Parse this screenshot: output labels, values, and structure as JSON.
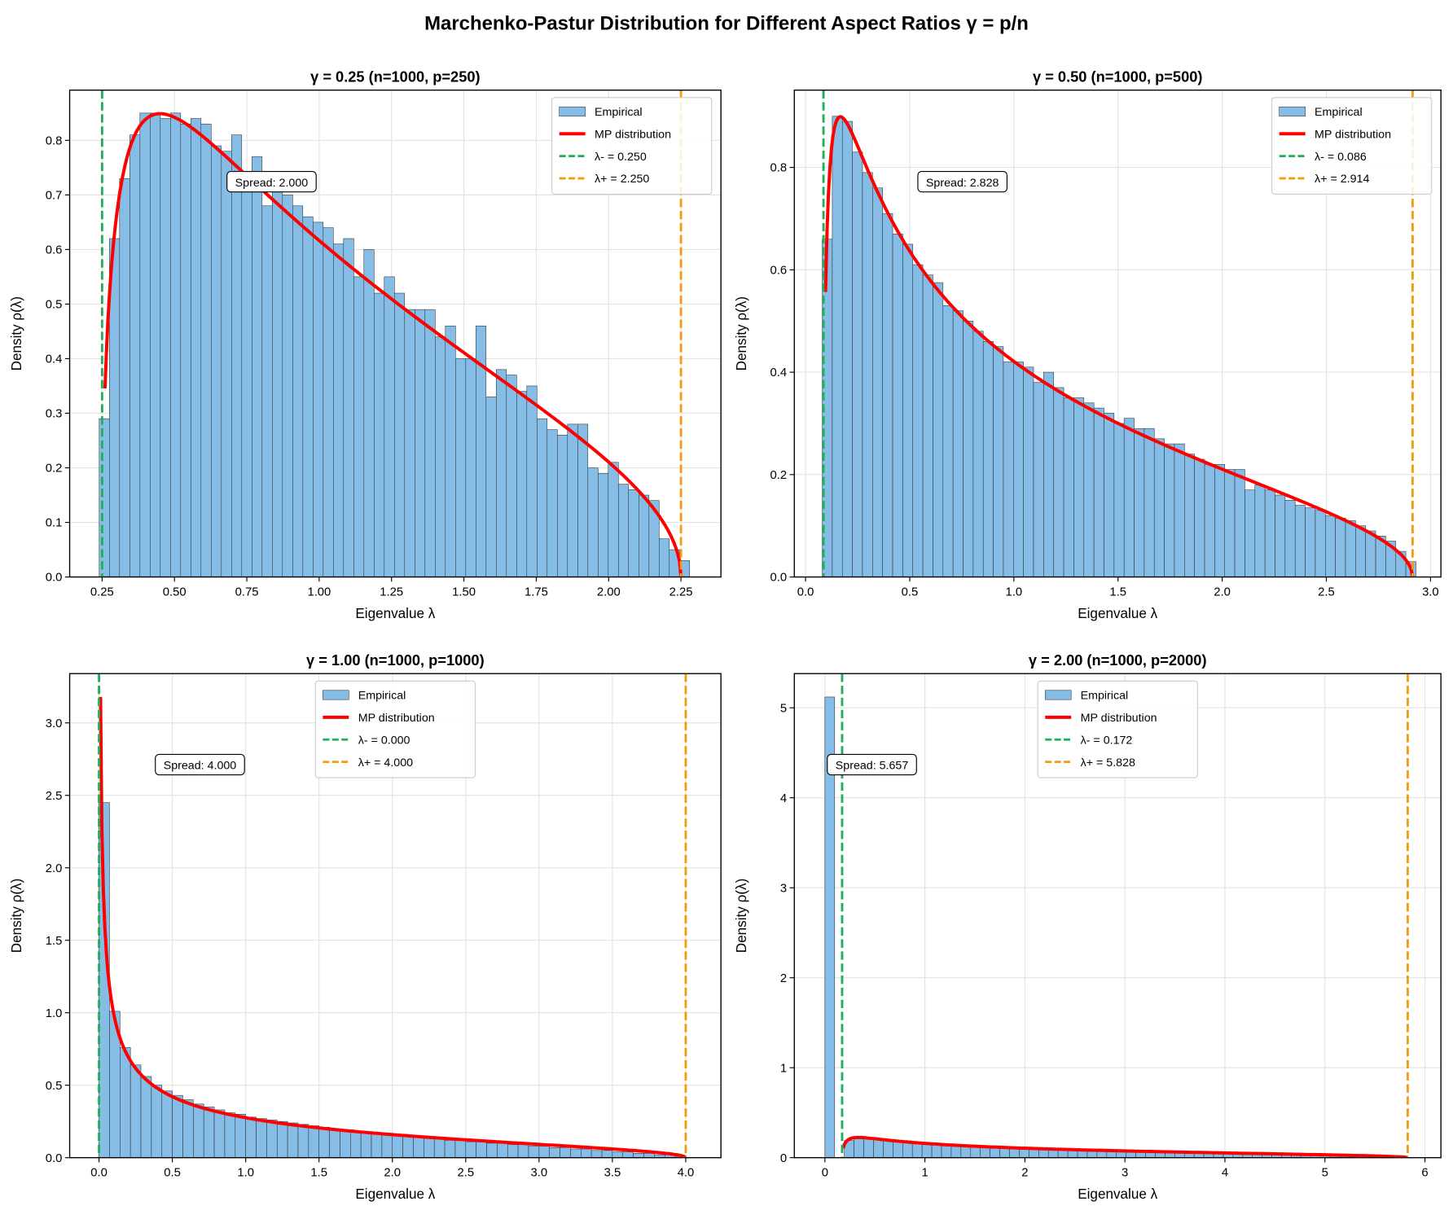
{
  "title": "Marchenko-Pastur Distribution for Different Aspect Ratios γ = p/n",
  "colors": {
    "hist": "#85bde6",
    "hist_edge": "#333333",
    "mp": "#ff0000",
    "lminus": "#1fae5a",
    "lplus": "#f39c12"
  },
  "chart_data": [
    {
      "type": "bar",
      "title": "γ = 0.25 (n=1000, p=250)",
      "xlabel": "Eigenvalue λ",
      "ylabel": "Density ρ(λ)",
      "gamma": 0.25,
      "lambda_minus": 0.25,
      "lambda_plus": 2.25,
      "xlim": [
        0.138,
        2.388
      ],
      "ylim": [
        0,
        0.892
      ],
      "xticks": [
        "0.25",
        "0.50",
        "0.75",
        "1.00",
        "1.25",
        "1.50",
        "1.75",
        "2.00",
        "2.25"
      ],
      "xtick_values": [
        0.25,
        0.5,
        0.75,
        1.0,
        1.25,
        1.5,
        1.75,
        2.0,
        2.25
      ],
      "yticks": [
        "0.0",
        "0.1",
        "0.2",
        "0.3",
        "0.4",
        "0.5",
        "0.6",
        "0.7",
        "0.8"
      ],
      "ytick_values": [
        0,
        0.1,
        0.2,
        0.3,
        0.4,
        0.5,
        0.6,
        0.7,
        0.8
      ],
      "hist_range": [
        0.24,
        2.28
      ],
      "hist_values": [
        0.29,
        0.62,
        0.73,
        0.81,
        0.85,
        0.85,
        0.84,
        0.85,
        0.83,
        0.84,
        0.83,
        0.79,
        0.78,
        0.81,
        0.73,
        0.77,
        0.68,
        0.71,
        0.7,
        0.68,
        0.66,
        0.65,
        0.64,
        0.61,
        0.62,
        0.55,
        0.6,
        0.52,
        0.55,
        0.52,
        0.49,
        0.49,
        0.49,
        0.44,
        0.46,
        0.4,
        0.4,
        0.46,
        0.33,
        0.38,
        0.37,
        0.34,
        0.35,
        0.29,
        0.27,
        0.26,
        0.28,
        0.28,
        0.2,
        0.19,
        0.21,
        0.17,
        0.16,
        0.15,
        0.14,
        0.07,
        0.05,
        0.03
      ],
      "legend": [
        "Empirical",
        "MP distribution",
        "λ- = 0.250",
        "λ+ = 2.250"
      ],
      "legend_loc": "upper right",
      "annotation": "Spread: 2.000"
    },
    {
      "type": "bar",
      "title": "γ = 0.50 (n=1000, p=500)",
      "xlabel": "Eigenvalue λ",
      "ylabel": "Density ρ(λ)",
      "gamma": 0.5,
      "lambda_minus": 0.086,
      "lambda_plus": 2.914,
      "xlim": [
        -0.054,
        3.05
      ],
      "ylim": [
        0,
        0.951
      ],
      "xticks": [
        "0.0",
        "0.5",
        "1.0",
        "1.5",
        "2.0",
        "2.5",
        "3.0"
      ],
      "xtick_values": [
        0,
        0.5,
        1,
        1.5,
        2,
        2.5,
        3
      ],
      "yticks": [
        "0.0",
        "0.2",
        "0.4",
        "0.6",
        "0.8"
      ],
      "ytick_values": [
        0,
        0.2,
        0.4,
        0.6,
        0.8
      ],
      "hist_range": [
        0.08,
        2.93
      ],
      "hist_values": [
        0.66,
        0.9,
        0.89,
        0.83,
        0.79,
        0.76,
        0.71,
        0.67,
        0.65,
        0.61,
        0.59,
        0.575,
        0.53,
        0.52,
        0.5,
        0.48,
        0.46,
        0.45,
        0.42,
        0.42,
        0.41,
        0.38,
        0.4,
        0.37,
        0.35,
        0.35,
        0.34,
        0.33,
        0.32,
        0.3,
        0.31,
        0.29,
        0.29,
        0.27,
        0.26,
        0.26,
        0.24,
        0.23,
        0.22,
        0.22,
        0.21,
        0.21,
        0.17,
        0.18,
        0.17,
        0.16,
        0.15,
        0.14,
        0.135,
        0.13,
        0.12,
        0.115,
        0.11,
        0.1,
        0.09,
        0.08,
        0.07,
        0.05,
        0.03
      ],
      "legend": [
        "Empirical",
        "MP distribution",
        "λ- = 0.086",
        "λ+ = 2.914"
      ],
      "legend_loc": "upper right",
      "annotation": "Spread: 2.828"
    },
    {
      "type": "bar",
      "title": "γ = 1.00 (n=1000, p=1000)",
      "xlabel": "Eigenvalue λ",
      "ylabel": "Density ρ(λ)",
      "gamma": 1.0,
      "lambda_minus": 0.0,
      "lambda_plus": 4.0,
      "xlim": [
        -0.2,
        4.24
      ],
      "ylim": [
        0,
        3.34
      ],
      "xticks": [
        "0.0",
        "0.5",
        "1.0",
        "1.5",
        "2.0",
        "2.5",
        "3.0",
        "3.5",
        "4.0"
      ],
      "xtick_values": [
        0,
        0.5,
        1,
        1.5,
        2,
        2.5,
        3,
        3.5,
        4
      ],
      "yticks": [
        "0.0",
        "0.5",
        "1.0",
        "1.5",
        "2.0",
        "2.5",
        "3.0"
      ],
      "ytick_values": [
        0,
        0.5,
        1,
        1.5,
        2,
        2.5,
        3
      ],
      "hist_range": [
        0.0,
        4.0
      ],
      "hist_values": [
        2.45,
        1.01,
        0.76,
        0.64,
        0.56,
        0.5,
        0.46,
        0.43,
        0.4,
        0.37,
        0.35,
        0.33,
        0.31,
        0.3,
        0.28,
        0.27,
        0.26,
        0.25,
        0.24,
        0.23,
        0.22,
        0.21,
        0.2,
        0.19,
        0.18,
        0.18,
        0.17,
        0.16,
        0.16,
        0.15,
        0.14,
        0.14,
        0.13,
        0.12,
        0.12,
        0.11,
        0.11,
        0.1,
        0.1,
        0.09,
        0.09,
        0.08,
        0.08,
        0.07,
        0.07,
        0.06,
        0.06,
        0.05,
        0.05,
        0.04,
        0.04,
        0.03,
        0.03,
        0.02,
        0.02,
        0.01
      ],
      "legend": [
        "Empirical",
        "MP distribution",
        "λ- = 0.000",
        "λ+ = 4.000"
      ],
      "legend_loc": "upper center",
      "annotation": "Spread: 4.000"
    },
    {
      "type": "bar",
      "title": "γ = 2.00 (n=1000, p=2000)",
      "xlabel": "Eigenvalue λ",
      "ylabel": "Density ρ(λ)",
      "gamma": 2.0,
      "lambda_minus": 0.172,
      "lambda_plus": 5.828,
      "xlim": [
        -0.306,
        6.16
      ],
      "ylim": [
        0,
        5.38
      ],
      "xticks": [
        "0",
        "1",
        "2",
        "3",
        "4",
        "5",
        "6"
      ],
      "xtick_values": [
        0,
        1,
        2,
        3,
        4,
        5,
        6
      ],
      "yticks": [
        "0",
        "1",
        "2",
        "3",
        "4",
        "5"
      ],
      "ytick_values": [
        0,
        1,
        2,
        3,
        4,
        5
      ],
      "hist_range": [
        0.0,
        5.83
      ],
      "hist_values": [
        5.12,
        0,
        0.19,
        0.21,
        0.21,
        0.2,
        0.19,
        0.18,
        0.17,
        0.16,
        0.16,
        0.15,
        0.14,
        0.14,
        0.13,
        0.13,
        0.12,
        0.12,
        0.11,
        0.11,
        0.11,
        0.1,
        0.1,
        0.1,
        0.09,
        0.09,
        0.09,
        0.08,
        0.08,
        0.08,
        0.08,
        0.07,
        0.07,
        0.07,
        0.07,
        0.06,
        0.06,
        0.06,
        0.06,
        0.05,
        0.05,
        0.05,
        0.05,
        0.05,
        0.04,
        0.04,
        0.04,
        0.04,
        0.04,
        0.03,
        0.03,
        0.03,
        0.03,
        0.03,
        0.02,
        0.02,
        0.02,
        0.02,
        0.01,
        0.01
      ],
      "legend": [
        "Empirical",
        "MP distribution",
        "λ- = 0.172",
        "λ+ = 5.828"
      ],
      "legend_loc": "upper center",
      "annotation": "Spread: 5.657"
    }
  ]
}
